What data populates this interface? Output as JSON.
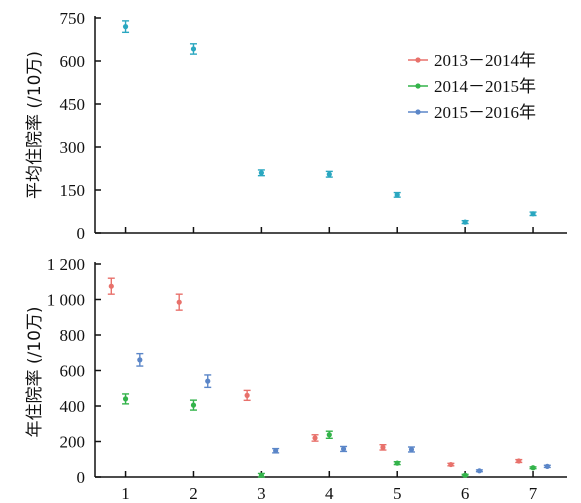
{
  "chart_data": [
    {
      "type": "scatter",
      "panel": "top",
      "ylabel": "平均住院率 (/10万)",
      "ylim": [
        0,
        750
      ],
      "yticks": [
        "0",
        "150",
        "300",
        "450",
        "600",
        "750"
      ],
      "xticks": [
        "1",
        "2",
        "3",
        "4",
        "5",
        "6",
        "7"
      ],
      "xlim": [
        0.55,
        7.5
      ],
      "legend": {
        "position": "top-right",
        "entries": [
          "2013－2014年",
          "2014－2015年",
          "2015－2016年"
        ]
      },
      "colors": [
        "#e8716b",
        "#33b34a",
        "#5b86c8"
      ],
      "point_color": "#2aa7c0",
      "points": [
        {
          "x": 1,
          "y": 720,
          "err": 20
        },
        {
          "x": 2,
          "y": 642,
          "err": 18
        },
        {
          "x": 3,
          "y": 210,
          "err": 10
        },
        {
          "x": 4,
          "y": 205,
          "err": 10
        },
        {
          "x": 5,
          "y": 133,
          "err": 8
        },
        {
          "x": 6,
          "y": 38,
          "err": 5
        },
        {
          "x": 7,
          "y": 67,
          "err": 6
        }
      ]
    },
    {
      "type": "scatter",
      "panel": "bottom",
      "ylabel": "年住院率 (/10万)",
      "ylim": [
        0,
        1200
      ],
      "yticks": [
        "0",
        "200",
        "400",
        "600",
        "800",
        "1 000",
        "1 200"
      ],
      "xticks": [
        "1",
        "2",
        "3",
        "4",
        "5",
        "6",
        "7"
      ],
      "xlim": [
        0.55,
        7.5
      ],
      "offset": 0.21,
      "series": [
        {
          "name": "2013－2014年",
          "color": "#e8716b",
          "values": [
            1075,
            985,
            460,
            220,
            167,
            70,
            90
          ],
          "errors": [
            45,
            45,
            28,
            18,
            15,
            7,
            8
          ]
        },
        {
          "name": "2014－2015年",
          "color": "#33b34a",
          "values": [
            440,
            405,
            10,
            238,
            78,
            10,
            52
          ],
          "errors": [
            28,
            28,
            10,
            20,
            8,
            5,
            5
          ]
        },
        {
          "name": "2015－2016年",
          "color": "#5b86c8",
          "values": [
            660,
            540,
            148,
            158,
            155,
            35,
            60
          ],
          "errors": [
            35,
            35,
            12,
            14,
            14,
            5,
            6
          ]
        }
      ]
    }
  ]
}
